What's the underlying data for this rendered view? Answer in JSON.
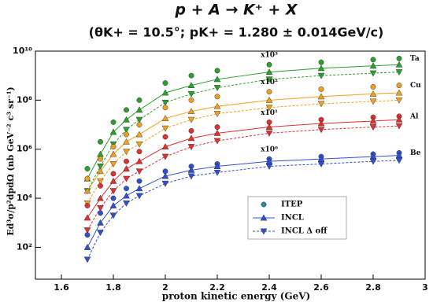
{
  "chart_data": {
    "type": "scatter",
    "title": "p + A → K⁺ + X",
    "subtitle": "(θK+ = 10.5°; pK+ = 1.280 ± 0.014GeV/c)",
    "x_label": "proton kinetic energy (GeV)",
    "y_label": "Ed³σ/p²dpdΩ (nb GeV⁻² c³ sr⁻¹)",
    "log_y": true,
    "xlim": [
      1.5,
      3.0
    ],
    "xticks": [
      1.6,
      1.8,
      2,
      2.2,
      2.4,
      2.6,
      2.8,
      3
    ],
    "ylim": [
      5,
      10000000000
    ],
    "yticks": [
      {
        "value": 100,
        "label": "10²"
      },
      {
        "value": 10000,
        "label": "10⁴"
      },
      {
        "value": 1000000,
        "label": "10⁶"
      },
      {
        "value": 100000000,
        "label": "10⁸"
      },
      {
        "value": 10000000000,
        "label": "10¹⁰"
      }
    ],
    "legend_position": "lower right",
    "legend": [
      {
        "name": "ITEP",
        "color": "#1f8f9a",
        "marker": "circle",
        "line": "none"
      },
      {
        "name": "INCL",
        "color": "#3050d0",
        "marker": "triangle-up",
        "line": "solid"
      },
      {
        "name": "INCL Δ off",
        "color": "#3050d0",
        "marker": "triangle-down",
        "line": "dashed"
      }
    ],
    "x": [
      1.7,
      1.75,
      1.8,
      1.85,
      1.9,
      2.0,
      2.1,
      2.2,
      2.4,
      2.6,
      2.8,
      2.9
    ],
    "groups": [
      {
        "label": "Ta",
        "factor_label": "x10³",
        "color": "#2ca02c",
        "values": [
          [
            160000,
            2000000,
            12600000,
            40000000,
            100000000,
            500000000,
            1000000000,
            1600000000,
            2800000000,
            3500000000,
            4500000000,
            5000000000
          ],
          [
            63000,
            630000,
            5000000,
            16000000,
            40000000,
            200000000,
            400000000,
            710000000,
            1400000000,
            2000000000,
            2500000000,
            2800000000
          ],
          [
            20000,
            200000,
            1600000,
            6300000,
            16000000,
            80000000,
            180000000,
            320000000,
            710000000,
            1000000000,
            1260000000,
            1400000000
          ]
        ]
      },
      {
        "label": "Cu",
        "factor_label": "x10²",
        "color": "#f0a020",
        "values": [
          [
            63000,
            400000,
            1260000,
            4000000,
            10000000,
            50000000,
            100000000,
            140000000,
            220000000,
            280000000,
            350000000,
            400000000
          ],
          [
            20000,
            126000,
            630000,
            2000000,
            4000000,
            18000000,
            35000000,
            56000000,
            100000000,
            140000000,
            180000000,
            200000000
          ],
          [
            6300,
            50000,
            250000,
            800000,
            1600000,
            7100000,
            16000000,
            28000000,
            50000000,
            71000000,
            89000000,
            100000000
          ]
        ]
      },
      {
        "label": "Al",
        "factor_label": "x10¹",
        "color": "#e03030",
        "values": [
          [
            5000,
            32000,
            100000,
            320000,
            800000,
            3200000,
            5600000,
            8000000,
            12600000,
            16000000,
            20000000,
            22000000
          ],
          [
            1600,
            10000,
            50000,
            160000,
            320000,
            1260000,
            2800000,
            4500000,
            8000000,
            11200000,
            14000000,
            16000000
          ],
          [
            500,
            4000,
            20000,
            63000,
            126000,
            500000,
            1260000,
            2200000,
            4500000,
            6300000,
            8000000,
            8900000
          ]
        ]
      },
      {
        "label": "Be",
        "factor_label": "x10⁰",
        "color": "#3050d0",
        "values": [
          [
            320,
            2500,
            10000,
            25000,
            50000,
            126000,
            200000,
            250000,
            400000,
            500000,
            630000,
            710000
          ],
          [
            100,
            1000,
            5000,
            12600,
            25000,
            80000,
            140000,
            200000,
            320000,
            400000,
            500000,
            560000
          ],
          [
            32,
            400,
            2000,
            6300,
            12600,
            40000,
            80000,
            112000,
            200000,
            250000,
            320000,
            350000
          ]
        ]
      }
    ]
  }
}
